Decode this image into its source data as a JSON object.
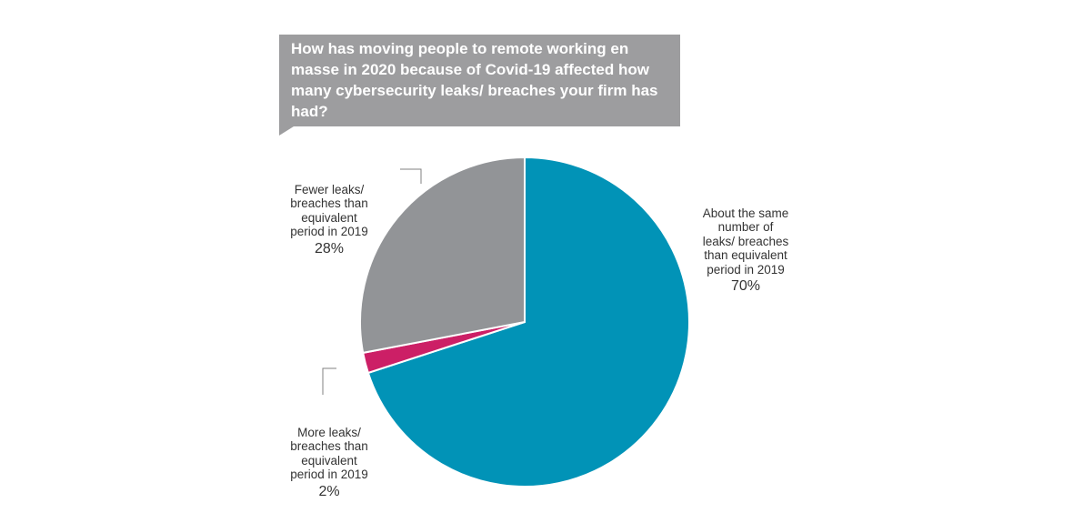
{
  "title": "How has moving people to remote working en masse in 2020 because of Covid-19 affected how many cybersecurity leaks/ breaches your firm has had?",
  "colors": {
    "same": "#0193b7",
    "fewer": "#929497",
    "more": "#cc1f66",
    "title_bg": "#9d9d9f"
  },
  "chart_data": {
    "type": "pie",
    "title": "How has moving people to remote working en masse in 2020 because of Covid-19 affected how many cybersecurity leaks/ breaches your firm has had?",
    "slices": [
      {
        "key": "same",
        "label": "About the same number of leaks/ breaches than equivalent period in 2019",
        "value": 70,
        "display": "70%",
        "color": "#0193b7"
      },
      {
        "key": "more",
        "label": "More leaks/ breaches than equivalent period in 2019",
        "value": 2,
        "display": "2%",
        "color": "#cc1f66"
      },
      {
        "key": "fewer",
        "label": "Fewer leaks/ breaches than equivalent period in 2019",
        "value": 28,
        "display": "28%",
        "color": "#929497"
      }
    ]
  }
}
